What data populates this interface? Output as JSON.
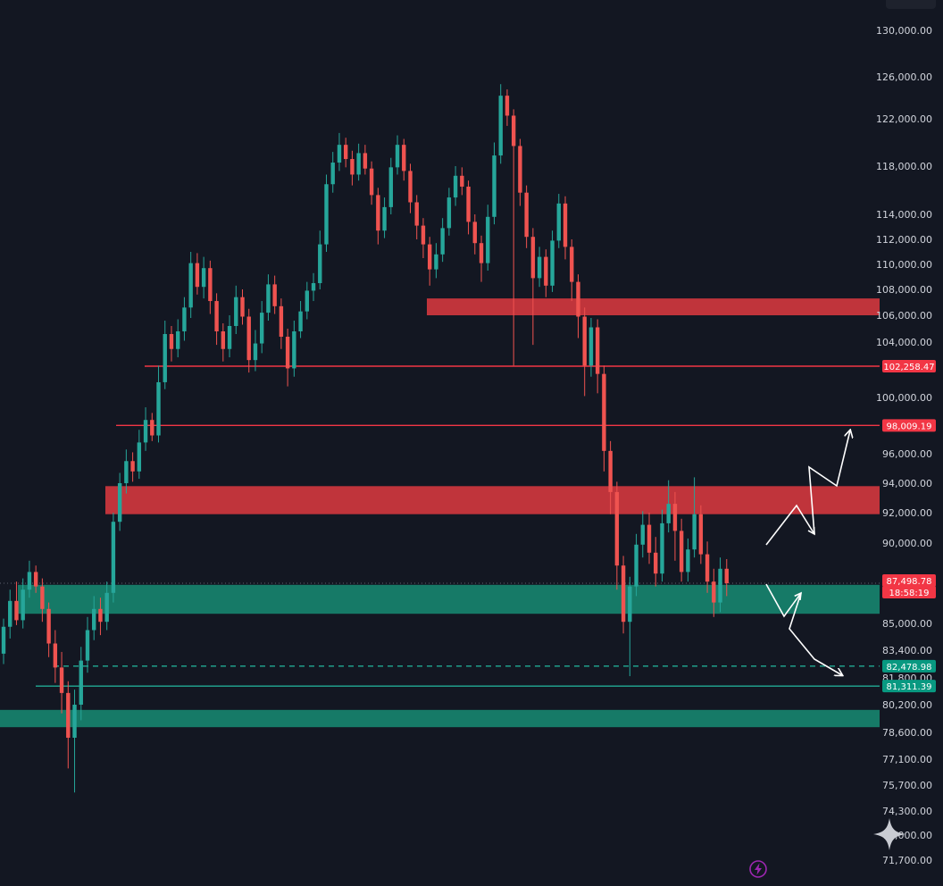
{
  "chart_data": {
    "type": "candlestick",
    "y_axis": {
      "position": "right",
      "ticks": [
        "130,000.00",
        "126,000.00",
        "122,000.00",
        "118,000.00",
        "114,000.00",
        "112,000.00",
        "110,000.00",
        "108,000.00",
        "106,000.00",
        "104,000.00",
        "100,000.00",
        "96,000.00",
        "94,000.00",
        "92,000.00",
        "90,000.00",
        "85,000.00",
        "83,400.00",
        "81,800.00",
        "80,200.00",
        "78,600.00",
        "77,100.00",
        "75,700.00",
        "74,300.00",
        "73,000.00",
        "71,700.00"
      ],
      "tick_values": [
        130000,
        126000,
        122000,
        118000,
        114000,
        112000,
        110000,
        108000,
        106000,
        104000,
        100000,
        96000,
        94000,
        92000,
        90000,
        85000,
        83400,
        81800,
        80200,
        78600,
        77100,
        75700,
        74300,
        73000,
        71700
      ]
    },
    "zones": [
      {
        "kind": "resistance",
        "low": 106000,
        "high": 107300,
        "color": "#c9363d"
      },
      {
        "kind": "resistance",
        "low": 91900,
        "high": 93800,
        "color": "#c9363d"
      },
      {
        "kind": "support",
        "low": 85600,
        "high": 87400,
        "color": "#16806b"
      },
      {
        "kind": "support",
        "low": 78900,
        "high": 79900,
        "color": "#16806b"
      }
    ],
    "levels": [
      {
        "value": 102258.47,
        "label": "102,258.47",
        "color": "#f23645",
        "style": "solid"
      },
      {
        "value": 98009.19,
        "label": "98,009.19",
        "color": "#f23645",
        "style": "solid"
      },
      {
        "value": 82478.98,
        "label": "82,478.98",
        "color": "#22ab94",
        "style": "dashed"
      },
      {
        "value": 81311.39,
        "label": "81,311.39",
        "color": "#22ab94",
        "style": "solid"
      }
    ],
    "price_tags": [
      {
        "value": 87498.78,
        "label": "87,498.78",
        "color": "#f23645"
      },
      {
        "value": 86800,
        "label": "18:58:19",
        "color": "#f23645"
      }
    ],
    "projection_paths": [
      {
        "color": "#ffffff",
        "points": [
          [
            87600,
            0
          ],
          [
            89800,
            1
          ],
          [
            88700,
            2
          ],
          [
            92600,
            3
          ],
          [
            91300,
            4
          ],
          [
            97900,
            5
          ]
        ]
      },
      {
        "color": "#ffffff",
        "points": [
          [
            87600,
            0
          ],
          [
            85400,
            1
          ],
          [
            86900,
            2
          ],
          [
            84100,
            3
          ],
          [
            82600,
            4
          ]
        ]
      }
    ],
    "candles": [
      [
        83200,
        84800,
        82600,
        85300
      ],
      [
        84800,
        86400,
        84100,
        87100
      ],
      [
        86400,
        85200,
        84900,
        87600
      ],
      [
        85200,
        87100,
        84700,
        87800
      ],
      [
        87100,
        88200,
        86600,
        88900
      ],
      [
        88200,
        87300,
        86900,
        88600
      ],
      [
        87300,
        85900,
        85100,
        87800
      ],
      [
        85900,
        83800,
        83000,
        86300
      ],
      [
        83800,
        82400,
        81500,
        84600
      ],
      [
        82400,
        80900,
        79700,
        83300
      ],
      [
        80900,
        78300,
        76600,
        81600
      ],
      [
        78300,
        80200,
        75300,
        81100
      ],
      [
        80200,
        82800,
        79300,
        83600
      ],
      [
        82800,
        84600,
        82100,
        85400
      ],
      [
        84600,
        85900,
        84000,
        86700
      ],
      [
        85900,
        85100,
        84300,
        86600
      ],
      [
        85100,
        86900,
        84600,
        87600
      ],
      [
        86900,
        91400,
        86300,
        92000
      ],
      [
        91400,
        94000,
        90800,
        94700
      ],
      [
        94000,
        95500,
        93300,
        96300
      ],
      [
        95500,
        94800,
        94100,
        96100
      ],
      [
        94800,
        96800,
        94300,
        97700
      ],
      [
        96800,
        98400,
        96200,
        99300
      ],
      [
        98400,
        97300,
        96900,
        98900
      ],
      [
        97300,
        101100,
        96800,
        102300
      ],
      [
        101100,
        104600,
        100600,
        105600
      ],
      [
        104600,
        103500,
        102600,
        105200
      ],
      [
        103500,
        104800,
        102900,
        105700
      ],
      [
        104800,
        106600,
        104100,
        107400
      ],
      [
        106600,
        110100,
        105800,
        111000
      ],
      [
        110100,
        108200,
        107600,
        110900
      ],
      [
        108200,
        109700,
        107300,
        110600
      ],
      [
        109700,
        107100,
        106100,
        110300
      ],
      [
        107100,
        104800,
        103800,
        107700
      ],
      [
        104800,
        103500,
        102600,
        105400
      ],
      [
        103500,
        105200,
        102900,
        106000
      ],
      [
        105200,
        107400,
        104600,
        108300
      ],
      [
        107400,
        105900,
        105300,
        108000
      ],
      [
        105900,
        102700,
        101800,
        106500
      ],
      [
        102700,
        103900,
        101900,
        104900
      ],
      [
        103900,
        106200,
        103200,
        107100
      ],
      [
        106200,
        108400,
        105600,
        109200
      ],
      [
        108400,
        106700,
        106100,
        109100
      ],
      [
        106700,
        104400,
        103500,
        107300
      ],
      [
        104400,
        102100,
        100800,
        105000
      ],
      [
        102100,
        104800,
        101500,
        105600
      ],
      [
        104800,
        106300,
        104300,
        107100
      ],
      [
        106300,
        107900,
        105700,
        108600
      ],
      [
        107900,
        108500,
        107100,
        109300
      ],
      [
        108500,
        111600,
        108000,
        112700
      ],
      [
        111600,
        116500,
        111000,
        117300
      ],
      [
        116500,
        118300,
        115800,
        119200
      ],
      [
        118300,
        119800,
        117600,
        120800
      ],
      [
        119800,
        118600,
        117900,
        120400
      ],
      [
        118600,
        117300,
        116400,
        119300
      ],
      [
        117300,
        119100,
        116800,
        119900
      ],
      [
        119100,
        117800,
        117300,
        119800
      ],
      [
        117800,
        115600,
        114800,
        118400
      ],
      [
        115600,
        112700,
        111600,
        116200
      ],
      [
        112700,
        114600,
        112100,
        115400
      ],
      [
        114600,
        117900,
        114000,
        118700
      ],
      [
        117900,
        119800,
        117300,
        120600
      ],
      [
        119800,
        117600,
        116800,
        120300
      ],
      [
        117600,
        115000,
        114100,
        118200
      ],
      [
        115000,
        113100,
        112000,
        115600
      ],
      [
        113100,
        111600,
        110500,
        113700
      ],
      [
        111600,
        109600,
        108300,
        112200
      ],
      [
        109600,
        110800,
        108900,
        111700
      ],
      [
        110800,
        112900,
        110200,
        113700
      ],
      [
        112900,
        115400,
        112300,
        116200
      ],
      [
        115400,
        117200,
        114700,
        118000
      ],
      [
        117200,
        116300,
        115600,
        117900
      ],
      [
        116300,
        113400,
        112400,
        116800
      ],
      [
        113400,
        111700,
        110800,
        114000
      ],
      [
        111700,
        110100,
        108600,
        112300
      ],
      [
        110100,
        113800,
        109500,
        114800
      ],
      [
        113800,
        118900,
        113200,
        120000
      ],
      [
        118900,
        124200,
        118200,
        125300
      ],
      [
        124200,
        122300,
        121400,
        124800
      ],
      [
        122300,
        119700,
        102300,
        122900
      ],
      [
        119700,
        115800,
        114700,
        120300
      ],
      [
        115800,
        112200,
        111300,
        116400
      ],
      [
        112200,
        108900,
        103800,
        112900
      ],
      [
        108900,
        110600,
        108200,
        111400
      ],
      [
        110600,
        108300,
        107400,
        111200
      ],
      [
        108300,
        111900,
        107800,
        112700
      ],
      [
        111900,
        114900,
        111300,
        115700
      ],
      [
        114900,
        111400,
        110400,
        115500
      ],
      [
        111400,
        108600,
        107100,
        112000
      ],
      [
        108600,
        105900,
        104300,
        109200
      ],
      [
        105900,
        102300,
        100100,
        106600
      ],
      [
        102300,
        105100,
        101500,
        105800
      ],
      [
        105100,
        101700,
        100300,
        105700
      ],
      [
        101700,
        96200,
        94800,
        102300
      ],
      [
        96200,
        93400,
        91900,
        96900
      ],
      [
        93400,
        88600,
        87100,
        94100
      ],
      [
        88600,
        85100,
        84400,
        89200
      ],
      [
        85100,
        87300,
        81900,
        87900
      ],
      [
        87300,
        89900,
        86700,
        90600
      ],
      [
        89900,
        91200,
        89100,
        92100
      ],
      [
        91200,
        89400,
        88700,
        92000
      ],
      [
        89400,
        88100,
        87300,
        90400
      ],
      [
        88100,
        91300,
        87600,
        92200
      ],
      [
        91300,
        92600,
        90700,
        94200
      ],
      [
        92600,
        90800,
        88900,
        93400
      ],
      [
        90800,
        88200,
        87600,
        91600
      ],
      [
        88200,
        89600,
        87600,
        90300
      ],
      [
        89600,
        91900,
        89100,
        94400
      ],
      [
        91900,
        89300,
        88700,
        92500
      ],
      [
        89300,
        87600,
        86900,
        90100
      ],
      [
        87600,
        86300,
        85400,
        88400
      ],
      [
        86300,
        88400,
        85700,
        89100
      ],
      [
        88400,
        87500,
        86700,
        89000
      ]
    ]
  },
  "icons": {
    "corner": "sparkle-icon",
    "bottom": "lightning-bolt-icon"
  }
}
